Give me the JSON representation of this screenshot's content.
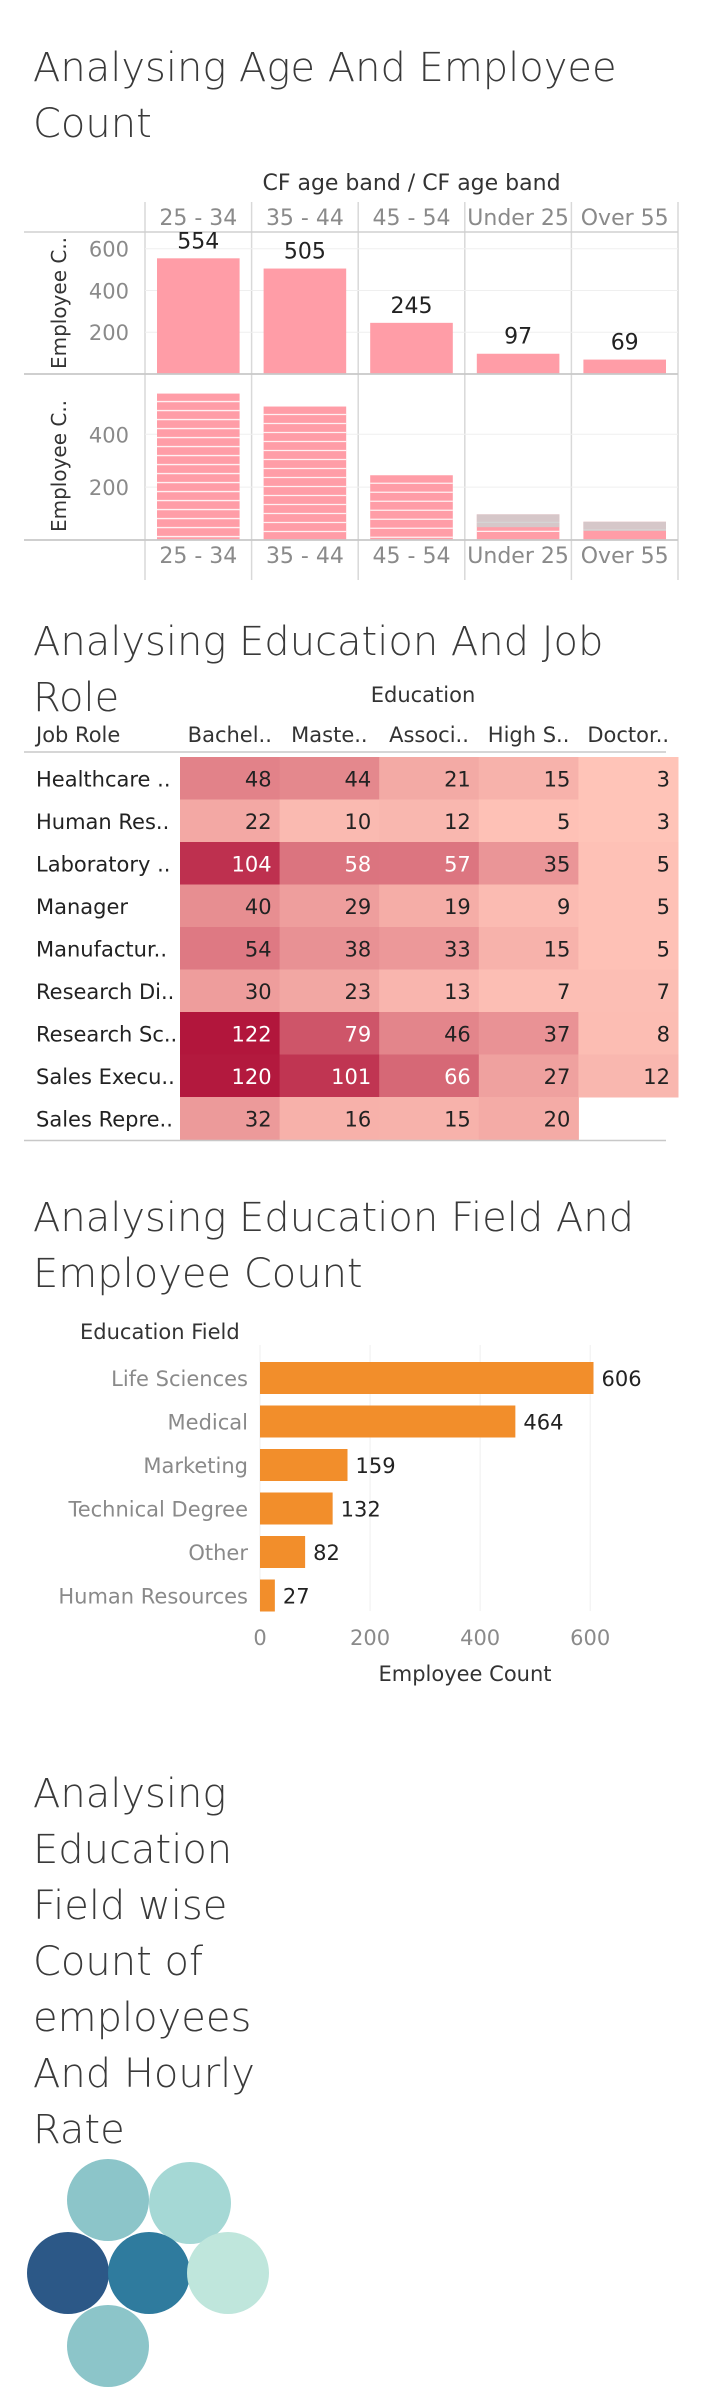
{
  "sections": {
    "age": {
      "title": "Analysing Age And Employee Count"
    },
    "edu_job": {
      "title": "Analysing Education And Job Role"
    },
    "edu_field": {
      "title": "Analysing Education Field And Employee Count"
    },
    "hourly": {
      "title": "Analysing Education Field wise Count of employees And Hourly Rate"
    }
  },
  "chart_data": [
    {
      "type": "bar",
      "header": "CF age band  /  CF age band",
      "categories": [
        "25 - 34",
        "35 - 44",
        "45 - 54",
        "Under 25",
        "Over 55"
      ],
      "rows": [
        {
          "axis_label": "Employee C..",
          "values": [
            554,
            505,
            245,
            97,
            69
          ],
          "yticks": [
            200,
            400,
            600
          ],
          "ylim": [
            0,
            680
          ],
          "show_labels": true
        },
        {
          "axis_label": "Employee C..",
          "values": [
            554,
            505,
            245,
            97,
            69
          ],
          "yticks": [
            200,
            400
          ],
          "ylim": [
            0,
            560
          ],
          "show_labels": false,
          "stacked": true
        }
      ],
      "colors": {
        "bar": "#ff9da7",
        "stack_gray": "#cfcfcf"
      }
    },
    {
      "type": "heatmap",
      "column_header": "Education",
      "row_header": "Job Role",
      "columns": [
        "Bachel..",
        "Maste..",
        "Associ..",
        "High S..",
        "Doctor.."
      ],
      "rows": [
        "Healthcare ..",
        "Human Res..",
        "Laboratory ..",
        "Manager",
        "Manufactur..",
        "Research Di..",
        "Research Sc..",
        "Sales Execu..",
        "Sales Repre.."
      ],
      "values": [
        [
          48,
          44,
          21,
          15,
          3
        ],
        [
          22,
          10,
          12,
          5,
          3
        ],
        [
          104,
          58,
          57,
          35,
          5
        ],
        [
          40,
          29,
          19,
          9,
          5
        ],
        [
          54,
          38,
          33,
          15,
          5
        ],
        [
          30,
          23,
          13,
          7,
          7
        ],
        [
          122,
          79,
          46,
          37,
          8
        ],
        [
          120,
          101,
          66,
          27,
          12
        ],
        [
          32,
          16,
          15,
          20,
          null
        ]
      ]
    },
    {
      "type": "bar",
      "orientation": "horizontal",
      "category_header": "Education Field",
      "categories": [
        "Life Sciences",
        "Medical",
        "Marketing",
        "Technical Degree",
        "Other",
        "Human Resources"
      ],
      "values": [
        606,
        464,
        159,
        132,
        82,
        27
      ],
      "xlabel": "Employee Count",
      "xticks": [
        0,
        200,
        400,
        600
      ],
      "xlim": [
        0,
        745
      ],
      "colors": {
        "bar": "#f28e2b"
      }
    },
    {
      "type": "scatter",
      "points": [
        {
          "color": "#8cc5c9"
        },
        {
          "color": "#a5d8d5"
        },
        {
          "color": "#2c5887"
        },
        {
          "color": "#2f7b9e"
        },
        {
          "color": "#bfe6dc"
        },
        {
          "color": "#8cc5c9"
        }
      ]
    }
  ]
}
